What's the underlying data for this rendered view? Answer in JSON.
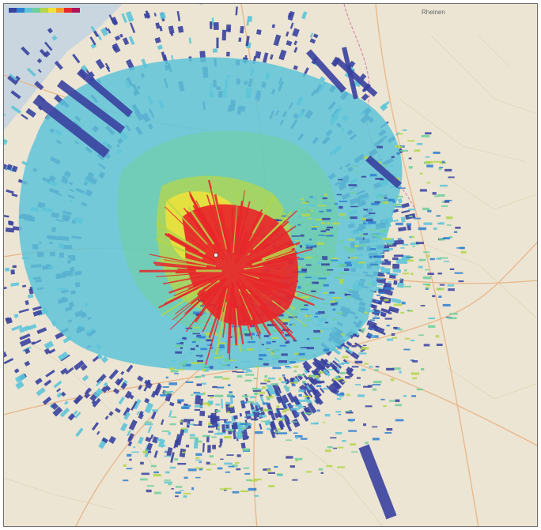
{
  "map": {
    "labels": {
      "city_ne": "Rheinen"
    },
    "colors": {
      "land": "#ece5d3",
      "sea": "#c9d6df",
      "road_major": "#e8b183",
      "road_minor": "#f4f1ea",
      "border": "#d58ab0",
      "echo_weak": "#3a42a0",
      "echo_light": "#5ec4d8",
      "echo_moderate": "#6fcf9c",
      "echo_mid": "#b5d64a",
      "echo_strong": "#f0e23a",
      "echo_intense": "#e8262a"
    },
    "legend_scale": [
      "#3a42a0",
      "#2f7fd1",
      "#5ec4d8",
      "#6fcf9c",
      "#b5d64a",
      "#f0e23a",
      "#f5a02a",
      "#e8262a",
      "#b01258"
    ]
  }
}
